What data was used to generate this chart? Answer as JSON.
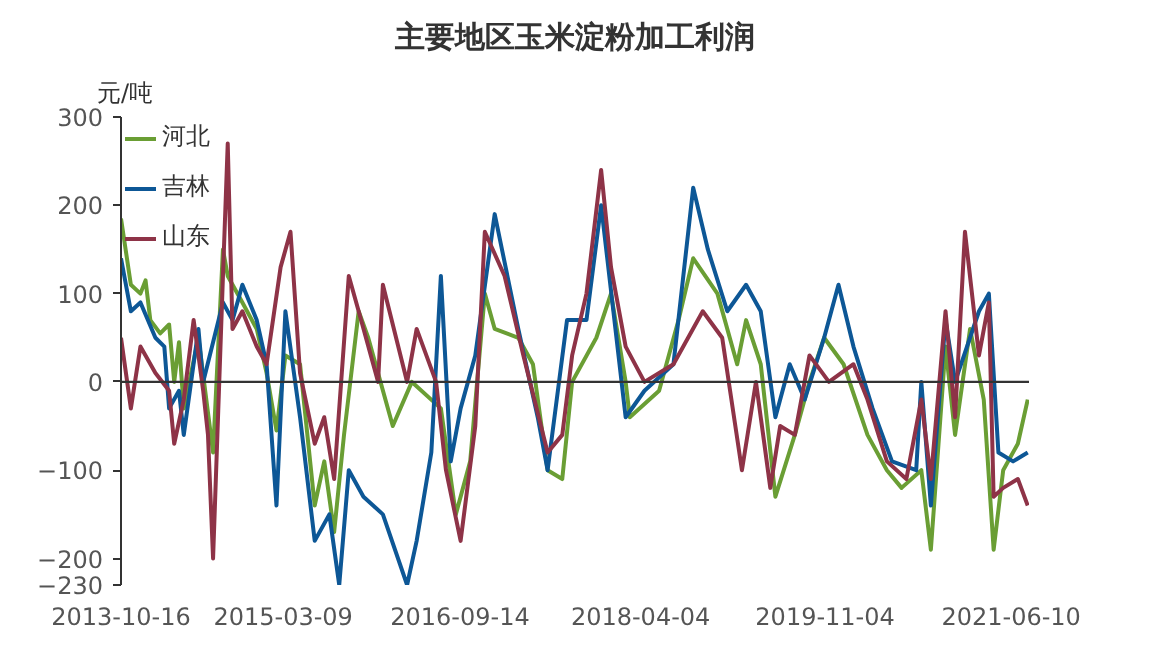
{
  "chart_data": {
    "type": "line",
    "title": "主要地区玉米淀粉加工利润",
    "ylabel": "元/吨",
    "xlim": [
      "2013-10-16",
      "2021-08-05"
    ],
    "xticks": [
      "2013-10-16",
      "2015-03-09",
      "2016-09-14",
      "2018-04-04",
      "2019-11-04",
      "2021-06-10"
    ],
    "ylim": [
      -230,
      300
    ],
    "yticks": [
      -230,
      -200,
      -100,
      0,
      100,
      200,
      300
    ],
    "grid": false,
    "legend": "top left",
    "marker": "none",
    "line_style": "solid",
    "ref_lines": [
      {
        "axis": "y",
        "value": 0,
        "color": "#333333"
      }
    ],
    "series": [
      {
        "name": "河北",
        "color": "#6a9e34",
        "x": [
          "2013-10-16",
          "2013-11-16",
          "2013-12-16",
          "2014-01-01",
          "2014-01-16",
          "2014-02-16",
          "2014-03-16",
          "2014-04-01",
          "2014-04-16",
          "2014-05-01",
          "2014-06-16",
          "2014-08-01",
          "2014-09-01",
          "2014-09-16",
          "2014-11-01",
          "2014-12-16",
          "2015-01-16",
          "2015-02-16",
          "2015-03-16",
          "2015-05-01",
          "2015-06-16",
          "2015-07-16",
          "2015-08-16",
          "2015-09-16",
          "2015-11-01",
          "2015-12-01",
          "2016-02-16",
          "2016-04-16",
          "2016-07-16",
          "2016-09-01",
          "2016-10-16",
          "2016-12-01",
          "2017-01-01",
          "2017-03-16",
          "2017-05-01",
          "2017-06-16",
          "2017-08-01",
          "2017-09-01",
          "2017-11-16",
          "2018-01-01",
          "2018-02-16",
          "2018-03-01",
          "2018-06-01",
          "2018-08-01",
          "2018-09-16",
          "2018-12-01",
          "2019-02-01",
          "2019-03-01",
          "2019-04-16",
          "2019-06-01",
          "2019-08-01",
          "2019-09-16",
          "2019-11-01",
          "2020-01-01",
          "2020-03-16",
          "2020-05-16",
          "2020-07-01",
          "2020-09-01",
          "2020-10-01",
          "2020-11-16",
          "2020-12-16",
          "2021-02-01",
          "2021-03-16",
          "2021-04-16",
          "2021-05-16",
          "2021-07-01",
          "2021-08-01"
        ],
        "values": [
          185,
          110,
          100,
          115,
          70,
          55,
          65,
          0,
          45,
          -30,
          50,
          -80,
          150,
          120,
          90,
          60,
          10,
          -55,
          30,
          20,
          -140,
          -90,
          -170,
          -60,
          80,
          50,
          -50,
          0,
          -30,
          -150,
          -90,
          100,
          60,
          50,
          20,
          -100,
          -110,
          0,
          50,
          100,
          0,
          -40,
          -10,
          70,
          140,
          100,
          20,
          70,
          20,
          -130,
          -60,
          0,
          50,
          20,
          -60,
          -100,
          -120,
          -100,
          -190,
          40,
          -60,
          60,
          -20,
          -190,
          -100,
          -70,
          -20
        ]
      },
      {
        "name": "吉林",
        "color": "#0d5796",
        "x": [
          "2013-10-16",
          "2013-11-16",
          "2013-12-16",
          "2014-02-01",
          "2014-03-01",
          "2014-03-16",
          "2014-04-16",
          "2014-05-01",
          "2014-06-16",
          "2014-07-01",
          "2014-09-01",
          "2014-10-01",
          "2014-11-01",
          "2014-12-16",
          "2015-01-16",
          "2015-02-16",
          "2015-03-16",
          "2015-05-01",
          "2015-06-16",
          "2015-08-01",
          "2015-09-01",
          "2015-10-01",
          "2015-11-16",
          "2016-01-16",
          "2016-04-01",
          "2016-05-01",
          "2016-06-16",
          "2016-07-16",
          "2016-08-16",
          "2016-09-16",
          "2016-11-01",
          "2017-01-01",
          "2017-03-16",
          "2017-05-16",
          "2017-06-16",
          "2017-08-16",
          "2017-10-16",
          "2017-12-01",
          "2018-02-16",
          "2018-04-16",
          "2018-07-16",
          "2018-09-16",
          "2018-11-01",
          "2019-01-01",
          "2019-03-01",
          "2019-04-16",
          "2019-06-01",
          "2019-07-16",
          "2019-09-01",
          "2019-11-01",
          "2019-12-16",
          "2020-02-01",
          "2020-04-01",
          "2020-06-01",
          "2020-08-16",
          "2020-09-01",
          "2020-10-01",
          "2020-11-16",
          "2020-12-16",
          "2021-03-01",
          "2021-04-01",
          "2021-05-01",
          "2021-06-16",
          "2021-08-01"
        ],
        "values": [
          140,
          80,
          90,
          50,
          40,
          -30,
          -10,
          -60,
          60,
          0,
          90,
          70,
          110,
          70,
          20,
          -140,
          80,
          -40,
          -180,
          -150,
          -230,
          -100,
          -130,
          -150,
          -230,
          -180,
          -80,
          120,
          -90,
          -30,
          30,
          190,
          60,
          -40,
          -100,
          70,
          70,
          200,
          -40,
          -10,
          20,
          220,
          150,
          80,
          110,
          80,
          -40,
          20,
          -20,
          50,
          110,
          40,
          -30,
          -90,
          -100,
          0,
          -140,
          70,
          0,
          80,
          100,
          -80,
          -90,
          -80
        ]
      },
      {
        "name": "山东",
        "color": "#8e3347",
        "x": [
          "2013-10-16",
          "2013-11-16",
          "2013-12-16",
          "2014-02-01",
          "2014-03-16",
          "2014-04-01",
          "2014-05-01",
          "2014-06-01",
          "2014-07-01",
          "2014-07-16",
          "2014-08-01",
          "2014-09-01",
          "2014-09-16",
          "2014-10-01",
          "2014-11-01",
          "2014-12-16",
          "2015-01-16",
          "2015-03-01",
          "2015-04-01",
          "2015-05-01",
          "2015-06-16",
          "2015-07-16",
          "2015-08-16",
          "2015-10-01",
          "2015-11-01",
          "2016-01-01",
          "2016-01-16",
          "2016-04-01",
          "2016-05-01",
          "2016-07-01",
          "2016-08-01",
          "2016-09-16",
          "2016-11-01",
          "2016-12-01",
          "2017-02-01",
          "2017-04-01",
          "2017-06-16",
          "2017-08-01",
          "2017-09-01",
          "2017-10-16",
          "2017-12-01",
          "2018-01-01",
          "2018-02-16",
          "2018-04-16",
          "2018-07-16",
          "2018-10-16",
          "2018-12-16",
          "2019-02-16",
          "2019-04-01",
          "2019-05-16",
          "2019-06-16",
          "2019-08-01",
          "2019-09-16",
          "2019-11-16",
          "2020-02-01",
          "2020-03-16",
          "2020-05-16",
          "2020-07-16",
          "2020-09-01",
          "2020-10-01",
          "2020-11-16",
          "2020-12-16",
          "2021-01-16",
          "2021-03-01",
          "2021-04-01",
          "2021-04-16",
          "2021-05-16",
          "2021-07-01",
          "2021-08-01"
        ],
        "values": [
          50,
          -30,
          40,
          10,
          -10,
          -70,
          -20,
          70,
          -10,
          -60,
          -200,
          120,
          270,
          60,
          80,
          40,
          20,
          130,
          170,
          10,
          -70,
          -40,
          -110,
          120,
          80,
          0,
          110,
          0,
          60,
          0,
          -100,
          -180,
          -50,
          170,
          120,
          30,
          -80,
          -60,
          30,
          100,
          240,
          130,
          40,
          0,
          20,
          80,
          50,
          -100,
          0,
          -120,
          -50,
          -60,
          30,
          0,
          20,
          -20,
          -90,
          -110,
          -20,
          -110,
          80,
          -40,
          170,
          30,
          90,
          -130,
          -120,
          -110,
          -140
        ]
      }
    ]
  }
}
